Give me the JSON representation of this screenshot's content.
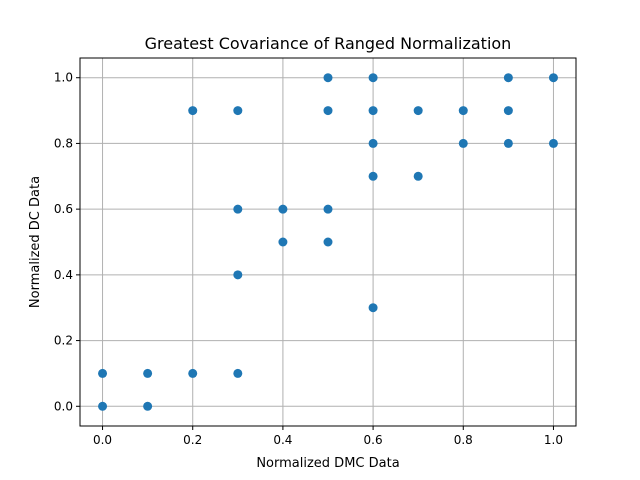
{
  "chart_data": {
    "type": "scatter",
    "title": "Greatest Covariance of Ranged Normalization",
    "xlabel": "Normalized DMC Data",
    "ylabel": "Normalized DC Data",
    "xlim": [
      -0.05,
      1.05
    ],
    "ylim": [
      -0.06,
      1.06
    ],
    "x_ticks": [
      0.0,
      0.2,
      0.4,
      0.6,
      0.8,
      1.0
    ],
    "y_ticks": [
      0.0,
      0.2,
      0.4,
      0.6,
      0.8,
      1.0
    ],
    "x_tick_labels": [
      "0.0",
      "0.2",
      "0.4",
      "0.6",
      "0.8",
      "1.0"
    ],
    "y_tick_labels": [
      "0.0",
      "0.2",
      "0.4",
      "0.6",
      "0.8",
      "1.0"
    ],
    "grid": true,
    "marker_color": "#1f77b4",
    "points": [
      {
        "x": 0.0,
        "y": 0.1
      },
      {
        "x": 0.0,
        "y": 0.0
      },
      {
        "x": 0.1,
        "y": 0.1
      },
      {
        "x": 0.1,
        "y": 0.0
      },
      {
        "x": 0.2,
        "y": 0.9
      },
      {
        "x": 0.2,
        "y": 0.1
      },
      {
        "x": 0.3,
        "y": 0.9
      },
      {
        "x": 0.3,
        "y": 0.6
      },
      {
        "x": 0.3,
        "y": 0.4
      },
      {
        "x": 0.3,
        "y": 0.1
      },
      {
        "x": 0.4,
        "y": 0.6
      },
      {
        "x": 0.4,
        "y": 0.5
      },
      {
        "x": 0.5,
        "y": 1.0
      },
      {
        "x": 0.5,
        "y": 0.9
      },
      {
        "x": 0.5,
        "y": 0.6
      },
      {
        "x": 0.5,
        "y": 0.5
      },
      {
        "x": 0.6,
        "y": 1.0
      },
      {
        "x": 0.6,
        "y": 0.9
      },
      {
        "x": 0.6,
        "y": 0.8
      },
      {
        "x": 0.6,
        "y": 0.7
      },
      {
        "x": 0.6,
        "y": 0.3
      },
      {
        "x": 0.7,
        "y": 0.9
      },
      {
        "x": 0.7,
        "y": 0.7
      },
      {
        "x": 0.8,
        "y": 0.9
      },
      {
        "x": 0.8,
        "y": 0.8
      },
      {
        "x": 0.9,
        "y": 1.0
      },
      {
        "x": 0.9,
        "y": 0.9
      },
      {
        "x": 0.9,
        "y": 0.8
      },
      {
        "x": 1.0,
        "y": 1.0
      },
      {
        "x": 1.0,
        "y": 0.8
      }
    ]
  }
}
